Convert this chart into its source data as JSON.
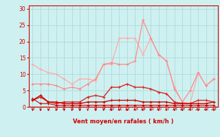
{
  "x": [
    0,
    1,
    2,
    3,
    4,
    5,
    6,
    7,
    8,
    9,
    10,
    11,
    12,
    13,
    14,
    15,
    16,
    17,
    18,
    19,
    20,
    21,
    22,
    23
  ],
  "series": [
    {
      "y": [
        13,
        11.5,
        10.5,
        10,
        8.5,
        7,
        8.5,
        8.5,
        8,
        13,
        13,
        21,
        21,
        21,
        16,
        21,
        16,
        14,
        6,
        1.5,
        1,
        10.5,
        6.5,
        8.5
      ],
      "color": "#ffaaaa",
      "lw": 0.9,
      "marker": "+"
    },
    {
      "y": [
        7,
        7,
        7,
        6.5,
        5.5,
        6,
        5.5,
        7,
        8.5,
        13,
        13.5,
        13,
        13,
        14,
        26.5,
        21,
        16,
        14,
        5.5,
        1.5,
        5,
        10.5,
        6.5,
        8.5
      ],
      "color": "#ff8888",
      "lw": 0.9,
      "marker": "+"
    },
    {
      "y": [
        2,
        3,
        1.5,
        1,
        1.5,
        1.5,
        1.5,
        3,
        3.5,
        3,
        6,
        6,
        7,
        6,
        6,
        5.5,
        4.5,
        4,
        1.5,
        1,
        1,
        2,
        2,
        1.5
      ],
      "color": "#dd2222",
      "lw": 1.0,
      "marker": "+"
    },
    {
      "y": [
        2,
        3.5,
        1.5,
        1.5,
        1,
        1,
        1,
        1.5,
        1.5,
        1.5,
        2,
        2,
        2,
        2,
        1.5,
        1.5,
        1.5,
        1.5,
        1,
        1,
        1,
        1,
        1,
        1.5
      ],
      "color": "#cc0000",
      "lw": 1.0,
      "marker": "+"
    },
    {
      "y": [
        2.5,
        1,
        1,
        0.5,
        0.5,
        0.5,
        0.5,
        0.5,
        0.5,
        0.5,
        0.5,
        0.5,
        0.5,
        0.5,
        0.5,
        0.5,
        0.5,
        0.5,
        0.5,
        0.5,
        0.5,
        0.5,
        0.5,
        0.5
      ],
      "color": "#cc0000",
      "lw": 0.8,
      "marker": "+"
    }
  ],
  "xlabel": "Vent moyen/en rafales ( km/h )",
  "ylabel_ticks": [
    0,
    5,
    10,
    15,
    20,
    25,
    30
  ],
  "ylim": [
    0,
    31
  ],
  "xlim": [
    0,
    23
  ],
  "bg_color": "#cff0f0",
  "grid_color": "#aadada",
  "tick_color": "#cc0000",
  "label_color": "#cc0000",
  "spine_color": "#cc0000"
}
